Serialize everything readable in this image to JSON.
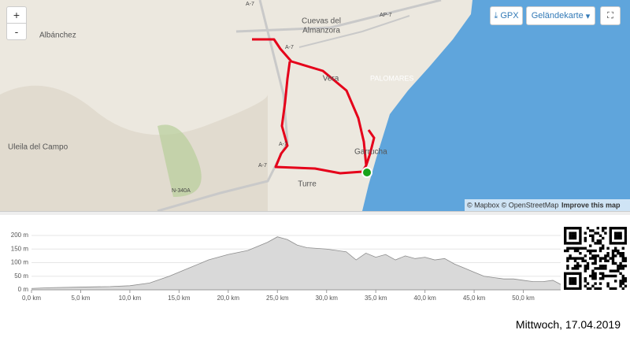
{
  "map": {
    "zoom_in": "+",
    "zoom_out": "-",
    "download": "GPX",
    "layer": "Geländekarte",
    "places": [
      "Cuevas del",
      "Almanzora",
      "Albánchez",
      "Vera",
      "PALOMARES",
      "Uleila del Campo",
      "Garrucha",
      "Turre"
    ],
    "roads": [
      "A-7",
      "AP-7",
      "A-7",
      "A-7",
      "A-7",
      "N-340A"
    ],
    "attribution": "© Mapbox © OpenStreetMap",
    "improve": "Improve this map"
  },
  "chart_data": {
    "type": "area",
    "color": "#d9d9d9",
    "line_color": "#8c8c8c",
    "x": [
      0,
      2,
      5,
      8,
      10,
      12,
      14,
      16,
      18,
      20,
      22,
      24,
      25,
      26,
      27,
      28,
      30,
      31,
      32,
      33,
      34,
      35,
      36,
      37,
      38,
      39,
      40,
      41,
      42,
      43,
      44,
      45,
      46,
      47,
      48,
      49,
      50,
      51,
      52,
      53,
      53.8
    ],
    "values": [
      5,
      8,
      10,
      12,
      15,
      25,
      50,
      80,
      110,
      130,
      145,
      175,
      195,
      185,
      165,
      155,
      150,
      145,
      140,
      110,
      135,
      120,
      130,
      110,
      125,
      115,
      120,
      110,
      115,
      95,
      80,
      65,
      50,
      45,
      40,
      40,
      35,
      30,
      30,
      35,
      20
    ],
    "xlim": [
      0,
      53.8
    ],
    "ylim": [
      0,
      200
    ],
    "xticks": [
      {
        "value": 0,
        "label": "0,0 km"
      },
      {
        "value": 5,
        "label": "5,0 km"
      },
      {
        "value": 10,
        "label": "10,0 km"
      },
      {
        "value": 15,
        "label": "15,0 km"
      },
      {
        "value": 20,
        "label": "20,0 km"
      },
      {
        "value": 25,
        "label": "25,0 km"
      },
      {
        "value": 30,
        "label": "30,0 km"
      },
      {
        "value": 35,
        "label": "35,0 km"
      },
      {
        "value": 40,
        "label": "40,0 km"
      },
      {
        "value": 45,
        "label": "45,0 km"
      },
      {
        "value": 50,
        "label": "50,0 km"
      }
    ],
    "yticks": [
      {
        "value": 0,
        "label": "0 m"
      },
      {
        "value": 50,
        "label": "50 m"
      },
      {
        "value": 100,
        "label": "100 m"
      },
      {
        "value": 150,
        "label": "150 m"
      },
      {
        "value": 200,
        "label": "200 m"
      }
    ],
    "grid": true
  },
  "footer": {
    "date": "Mittwoch, 17.04.2019"
  }
}
